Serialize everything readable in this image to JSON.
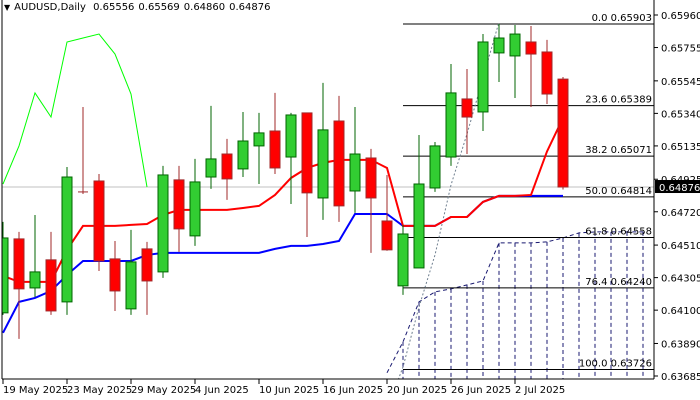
{
  "header": {
    "symbol": "AUDUSD,Daily",
    "open": "0.65556",
    "high": "0.65569",
    "low": "0.64860",
    "close": "0.64876"
  },
  "colors": {
    "bull_body": "#32CD32",
    "bull_border": "#006400",
    "bear_body": "#FF0000",
    "bear_border": "#A0282A",
    "tenkan": "#FF0000",
    "kijun": "#0000FF",
    "chikou": "#00FF00",
    "cloud": "#191970",
    "dotted": "#708090",
    "fib": "#000000",
    "price_line": "#C0C0C0"
  },
  "chart_data": {
    "type": "candlestick",
    "title": "AUDUSD,Daily",
    "ylim": [
      0.63685,
      0.6596
    ],
    "grid": false,
    "candles": [
      [
        0.64083,
        0.64656,
        0.6407,
        0.64555
      ],
      [
        0.64549,
        0.64593,
        0.63919,
        0.64234
      ],
      [
        0.6424,
        0.647,
        0.64183,
        0.64341
      ],
      [
        0.64417,
        0.64593,
        0.6407,
        0.64095
      ],
      [
        0.64152,
        0.65002,
        0.6407,
        0.64939
      ],
      [
        0.64845,
        0.6538,
        0.64832,
        0.64845
      ],
      [
        0.64914,
        0.64958,
        0.64347,
        0.6441
      ],
      [
        0.64423,
        0.64536,
        0.64095,
        0.64221
      ],
      [
        0.64108,
        0.64606,
        0.6407,
        0.64404
      ],
      [
        0.64486,
        0.6453,
        0.6407,
        0.64284
      ],
      [
        0.64341,
        0.65009,
        0.64303,
        0.64952
      ],
      [
        0.64921,
        0.65009,
        0.64467,
        0.64612
      ],
      [
        0.64568,
        0.65053,
        0.64505,
        0.64908
      ],
      [
        0.64939,
        0.65387,
        0.64864,
        0.65053
      ],
      [
        0.65084,
        0.65179,
        0.64795,
        0.64927
      ],
      [
        0.6499,
        0.65349,
        0.64939,
        0.65166
      ],
      [
        0.65135,
        0.65343,
        0.64895,
        0.65217
      ],
      [
        0.65229,
        0.65469,
        0.64958,
        0.64996
      ],
      [
        0.65065,
        0.65343,
        0.64769,
        0.6533
      ],
      [
        0.65343,
        0.65343,
        0.64561,
        0.64839
      ],
      [
        0.64807,
        0.65532,
        0.64669,
        0.65236
      ],
      [
        0.65292,
        0.6545,
        0.64656,
        0.64757
      ],
      [
        0.64851,
        0.6538,
        0.64713,
        0.65084
      ],
      [
        0.65059,
        0.65116,
        0.64461,
        0.64807
      ],
      [
        0.64662,
        0.64952,
        0.64474,
        0.6448
      ],
      [
        0.64253,
        0.64637,
        0.64196,
        0.6458
      ],
      [
        0.64366,
        0.65204,
        0.64366,
        0.64895
      ],
      [
        0.6487,
        0.6516,
        0.64845,
        0.65135
      ],
      [
        0.65065,
        0.65651,
        0.65009,
        0.65469
      ],
      [
        0.65431,
        0.6562,
        0.65084,
        0.65317
      ],
      [
        0.65349,
        0.6584,
        0.65229,
        0.6579
      ],
      [
        0.65721,
        0.65903,
        0.65538,
        0.65815
      ],
      [
        0.65702,
        0.65897,
        0.65437,
        0.6584
      ],
      [
        0.6579,
        0.65891,
        0.6538,
        0.65714
      ],
      [
        0.65727,
        0.65803,
        0.65399,
        0.65462
      ],
      [
        0.65556,
        0.65569,
        0.6486,
        0.64876
      ]
    ],
    "tenkan": [
      0.64316,
      0.64278,
      0.64278,
      0.64278,
      0.6448,
      0.64631,
      0.64631,
      0.64631,
      0.64637,
      0.64643,
      0.647,
      0.64732,
      0.64732,
      0.64732,
      0.64732,
      0.64744,
      0.64757,
      0.64826,
      0.64933,
      0.64996,
      0.65028,
      0.65047,
      0.65047,
      0.65047,
      0.64996,
      0.64631,
      0.64631,
      0.64631,
      0.64687,
      0.64687,
      0.64782,
      0.6482,
      0.6482,
      0.64826,
      0.651,
      0.65311
    ],
    "kijun": [
      0.63957,
      0.64152,
      0.64177,
      0.64221,
      0.64322,
      0.6441,
      0.6441,
      0.6441,
      0.6441,
      0.64448,
      0.64461,
      0.64461,
      0.64461,
      0.64461,
      0.64461,
      0.64461,
      0.64461,
      0.64486,
      0.64505,
      0.64505,
      0.64517,
      0.64536,
      0.64706,
      0.64706,
      0.64706,
      0.64631,
      0.64631,
      0.64631,
      0.64687,
      0.64687,
      0.64782,
      0.6482,
      0.6482,
      0.6482,
      0.6482,
      0.6482
    ],
    "chikou": [
      0.64895,
      0.65135,
      0.65469,
      0.65317,
      0.6579,
      0.65815,
      0.6584,
      0.65714,
      0.65462,
      0.64876
    ],
    "dotted_line": {
      "start_index": 24,
      "values": [
        0.63472,
        0.63742,
        0.6412,
        0.64448,
        0.64889,
        0.6521,
        0.65563,
        0.65916
      ]
    },
    "cloud_span": {
      "start_index": 24,
      "values": [
        0.63705,
        0.639,
        0.64152,
        0.64215,
        0.64234,
        0.64259,
        0.64284,
        0.64524,
        0.64524,
        0.64524,
        0.6453,
        0.64555,
        0.64587,
        0.64593,
        0.64593,
        0.64593,
        0.64593
      ]
    },
    "current_price": 0.64876,
    "fibonacci": [
      {
        "label": "0.0 0.65903",
        "price": 0.65903
      },
      {
        "label": "23.6 0.65389",
        "price": 0.65389
      },
      {
        "label": "38.2 0.65071",
        "price": 0.65071
      },
      {
        "label": "50.0 0.64814",
        "price": 0.64814
      },
      {
        "label": "61.8 0.64558",
        "price": 0.64558
      },
      {
        "label": "76.4 0.64240",
        "price": 0.6424
      },
      {
        "label": "100.0 0.63726",
        "price": 0.63726
      }
    ],
    "fib_start_index": 25,
    "y_ticks": [
      "0.65960",
      "0.65755",
      "0.65545",
      "0.65340",
      "0.65135",
      "0.64925",
      "0.64720",
      "0.64510",
      "0.64305",
      "0.64100",
      "0.63890",
      "0.63685"
    ],
    "x_ticks": [
      {
        "index": 0,
        "label": "19 May 2025"
      },
      {
        "index": 4,
        "label": "23 May 2025"
      },
      {
        "index": 8,
        "label": "29 May 2025"
      },
      {
        "index": 12,
        "label": "4 Jun 2025"
      },
      {
        "index": 16,
        "label": "10 Jun 2025"
      },
      {
        "index": 20,
        "label": "16 Jun 2025"
      },
      {
        "index": 24,
        "label": "20 Jun 2025"
      },
      {
        "index": 28,
        "label": "26 Jun 2025"
      },
      {
        "index": 32,
        "label": "2 Jul 2025"
      }
    ],
    "current_price_label": "0.64876"
  }
}
